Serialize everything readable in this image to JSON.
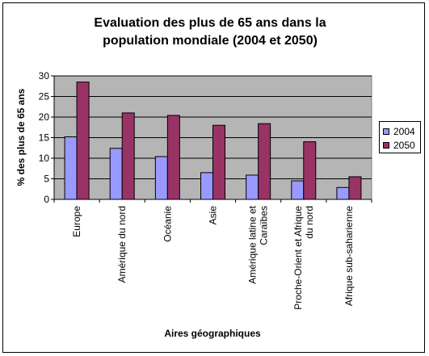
{
  "chart_data": {
    "type": "bar",
    "title_lines": [
      "Evaluation des plus de 65 ans dans la",
      "population mondiale (2004 et 2050)"
    ],
    "xlabel": "Aires géographiques",
    "ylabel": "% des plus de 65 ans",
    "ylim": [
      0,
      30
    ],
    "yticks": [
      0,
      5,
      10,
      15,
      20,
      25,
      30
    ],
    "grid": true,
    "legend_position": "right",
    "categories": [
      [
        "Europe"
      ],
      [
        "Amérique du nord"
      ],
      [
        "Océanie"
      ],
      [
        "Asie"
      ],
      [
        "Amérique latine et",
        "Caraïbes"
      ],
      [
        "Proche-Orient et Afrique",
        "du nord"
      ],
      [
        "Afrique sub-saharienne"
      ]
    ],
    "series": [
      {
        "name": "2004",
        "color": "#9999ff",
        "values": [
          15.2,
          12.4,
          10.4,
          6.5,
          5.9,
          4.5,
          2.9
        ]
      },
      {
        "name": "2050",
        "color": "#993366",
        "values": [
          28.5,
          21.0,
          20.4,
          18.0,
          18.4,
          14.0,
          5.5
        ]
      }
    ],
    "plot_background": "#c0c0c0"
  }
}
